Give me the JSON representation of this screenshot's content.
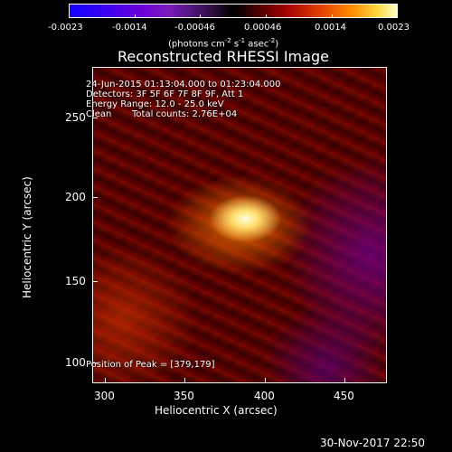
{
  "colorbar": {
    "tick_labels": [
      "-0.0023",
      "-0.0014",
      "-0.00046",
      "0.00046",
      "0.0014",
      "0.0023"
    ],
    "units": "(photons cm",
    "units_sup1": "-2",
    "units_mid": " s",
    "units_sup2": "-1",
    "units_end": " asec",
    "units_sup3": "-2",
    "units_close": ")"
  },
  "title": "Reconstructed RHESSI Image",
  "info": {
    "line1": "24-Jun-2015 01:13:04.000 to 01:23:04.000",
    "line2": "Detectors: 3F 5F 6F 7F 8F 9F, Att 1",
    "line3": "Energy Range: 12.0 - 25.0 keV",
    "line4_a": "Clean",
    "line4_b": "Total counts: 2.76E+04"
  },
  "peak_label": "Position of Peak = [379,179]",
  "x_axis": {
    "label": "Heliocentric X (arcsec)",
    "ticks": [
      "300",
      "350",
      "400",
      "450"
    ]
  },
  "y_axis": {
    "label": "Heliocentric Y (arcsec)",
    "ticks": [
      "250",
      "200",
      "150",
      "100"
    ]
  },
  "footer_date": "30-Nov-2017 22:50",
  "colors": {
    "background": "#000000",
    "text": "#ffffff",
    "colormap_low": "#1200ff",
    "colormap_mid": "#000000",
    "colormap_high": "#ffffc8"
  }
}
